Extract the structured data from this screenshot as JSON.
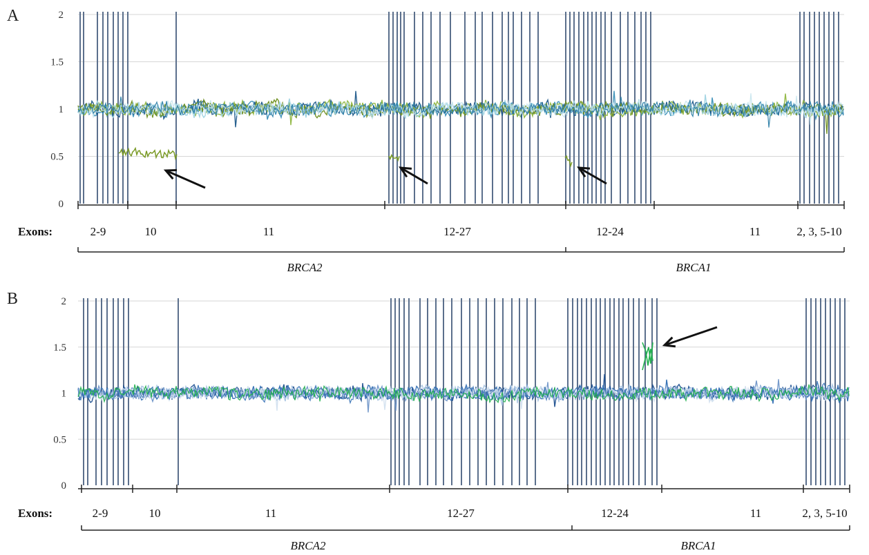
{
  "chart_data": [
    {
      "panel": "A",
      "type": "line",
      "ylim": [
        0,
        2
      ],
      "yticks": [
        "0",
        "0.5",
        "1",
        "1.5",
        "2"
      ],
      "grid": true,
      "exons_label": "Exons:",
      "regions": [
        "2-9",
        "10",
        "11",
        "12-27",
        "12-24",
        "11",
        "2, 3, 5-10"
      ],
      "genes": [
        "BRCA2",
        "BRCA1"
      ],
      "baseline_ratio": 1.0,
      "deletion_segments": [
        {
          "region": "10",
          "ratio": 0.55
        },
        {
          "region": "12-27",
          "ratio": 0.52
        },
        {
          "region": "12-24",
          "ratio": 0.5
        }
      ],
      "series_colors": [
        "#3b8fb8",
        "#1f5a8a",
        "#8fb640",
        "#6f8f1f",
        "#9fd3e3",
        "#c8e6ee",
        "#2e7fa8"
      ]
    },
    {
      "panel": "B",
      "type": "line",
      "ylim": [
        0,
        2
      ],
      "yticks": [
        "0",
        "0.5",
        "1",
        "1.5",
        "2"
      ],
      "grid": true,
      "exons_label": "Exons:",
      "regions": [
        "2-9",
        "10",
        "11",
        "12-27",
        "12-24",
        "11",
        "2, 3, 5-10"
      ],
      "genes": [
        "BRCA2",
        "BRCA1"
      ],
      "baseline_ratio": 1.0,
      "duplication_segments": [
        {
          "region": "12-24",
          "ratio": 1.5
        }
      ],
      "series_colors": [
        "#1e4f8f",
        "#2f6db2",
        "#6f95c8",
        "#a9c4e2",
        "#d2e0ef",
        "#22b04f"
      ]
    }
  ]
}
